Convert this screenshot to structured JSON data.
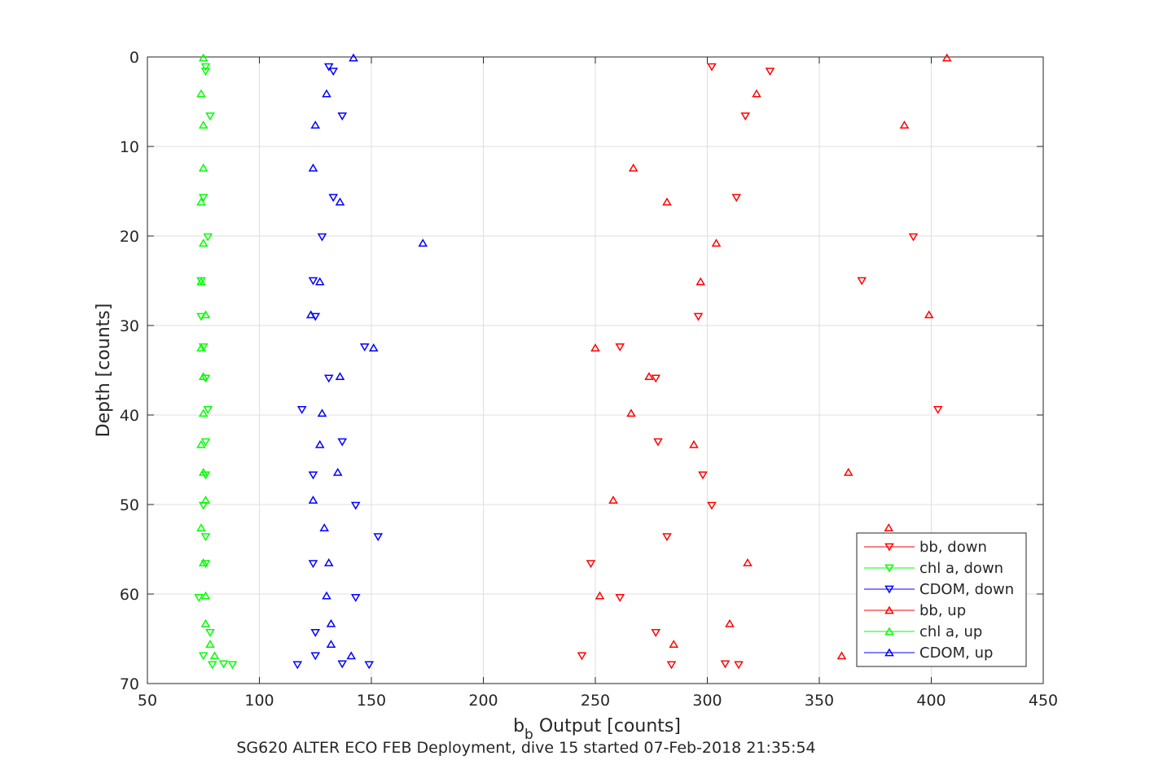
{
  "chart_data": {
    "type": "scatter",
    "xlabel": "b",
    "xlabel_subscript": "b",
    "xlabel_suffix": " Output [counts]",
    "ylabel": "Depth [counts]",
    "caption": "SG620 ALTER ECO FEB Deployment, dive 15 started 07-Feb-2018 21:35:54",
    "xlim": [
      50,
      450
    ],
    "ylim": [
      0,
      70
    ],
    "y_reversed": true,
    "grid": true,
    "legend_position": "bottom-right",
    "x_ticks": [
      "50",
      "100",
      "150",
      "200",
      "250",
      "300",
      "350",
      "400",
      "450"
    ],
    "y_ticks": [
      "0",
      "10",
      "20",
      "30",
      "40",
      "50",
      "60",
      "70"
    ],
    "series": [
      {
        "name": "bb, down",
        "color": "#ff0000",
        "marker": "triangle-down",
        "points": [
          [
            302,
            1.1
          ],
          [
            328,
            1.6
          ],
          [
            317,
            6.6
          ],
          [
            313,
            15.7
          ],
          [
            392,
            20.1
          ],
          [
            369,
            25.0
          ],
          [
            296,
            29.0
          ],
          [
            261,
            32.4
          ],
          [
            277,
            35.9
          ],
          [
            403,
            39.4
          ],
          [
            278,
            43.0
          ],
          [
            298,
            46.7
          ],
          [
            302,
            50.1
          ],
          [
            282,
            53.6
          ],
          [
            248,
            56.6
          ],
          [
            261,
            60.4
          ],
          [
            277,
            64.3
          ],
          [
            244,
            66.9
          ],
          [
            284,
            67.9
          ],
          [
            308,
            67.8
          ],
          [
            314,
            67.9
          ]
        ]
      },
      {
        "name": "chl a, down",
        "color": "#00ff00",
        "marker": "triangle-down",
        "points": [
          [
            76,
            1.1
          ],
          [
            76,
            1.6
          ],
          [
            78,
            6.6
          ],
          [
            75,
            15.7
          ],
          [
            77,
            20.1
          ],
          [
            74,
            25.0
          ],
          [
            74,
            29.0
          ],
          [
            75,
            32.4
          ],
          [
            76,
            35.9
          ],
          [
            77,
            39.4
          ],
          [
            76,
            43.0
          ],
          [
            76,
            46.7
          ],
          [
            75,
            50.1
          ],
          [
            76,
            53.6
          ],
          [
            76,
            56.6
          ],
          [
            73,
            60.4
          ],
          [
            78,
            64.3
          ],
          [
            75,
            66.9
          ],
          [
            79,
            67.9
          ],
          [
            84,
            67.8
          ],
          [
            88,
            67.9
          ]
        ]
      },
      {
        "name": "CDOM, down",
        "color": "#0000ff",
        "marker": "triangle-down",
        "points": [
          [
            131,
            1.1
          ],
          [
            133,
            1.6
          ],
          [
            137,
            6.6
          ],
          [
            133,
            15.7
          ],
          [
            128,
            20.1
          ],
          [
            124,
            25.0
          ],
          [
            125,
            29.0
          ],
          [
            147,
            32.4
          ],
          [
            131,
            35.9
          ],
          [
            119,
            39.4
          ],
          [
            137,
            43.0
          ],
          [
            124,
            46.7
          ],
          [
            143,
            50.1
          ],
          [
            153,
            53.6
          ],
          [
            124,
            56.6
          ],
          [
            143,
            60.4
          ],
          [
            125,
            64.3
          ],
          [
            125,
            66.9
          ],
          [
            117,
            67.9
          ],
          [
            137,
            67.8
          ],
          [
            149,
            67.9
          ]
        ]
      },
      {
        "name": "bb, up",
        "color": "#ff0000",
        "marker": "triangle-up",
        "points": [
          [
            407,
            0.1
          ],
          [
            322,
            4.1
          ],
          [
            388,
            7.6
          ],
          [
            267,
            12.4
          ],
          [
            282,
            16.2
          ],
          [
            304,
            20.8
          ],
          [
            297,
            25.1
          ],
          [
            399,
            28.8
          ],
          [
            250,
            32.5
          ],
          [
            274,
            35.7
          ],
          [
            266,
            39.8
          ],
          [
            294,
            43.3
          ],
          [
            363,
            46.4
          ],
          [
            258,
            49.5
          ],
          [
            381,
            52.6
          ],
          [
            318,
            56.5
          ],
          [
            252,
            60.2
          ],
          [
            310,
            63.3
          ],
          [
            285,
            65.6
          ],
          [
            360,
            66.9
          ]
        ]
      },
      {
        "name": "chl a, up",
        "color": "#00ff00",
        "marker": "triangle-up",
        "points": [
          [
            75,
            0.1
          ],
          [
            74,
            4.1
          ],
          [
            75,
            7.6
          ],
          [
            75,
            12.4
          ],
          [
            74,
            16.2
          ],
          [
            75,
            20.8
          ],
          [
            74,
            25.1
          ],
          [
            76,
            28.8
          ],
          [
            74,
            32.5
          ],
          [
            75,
            35.7
          ],
          [
            75,
            39.8
          ],
          [
            74,
            43.3
          ],
          [
            75,
            46.4
          ],
          [
            76,
            49.5
          ],
          [
            74,
            52.6
          ],
          [
            75,
            56.5
          ],
          [
            76,
            60.2
          ],
          [
            76,
            63.3
          ],
          [
            78,
            65.6
          ],
          [
            80,
            66.9
          ]
        ]
      },
      {
        "name": "CDOM, up",
        "color": "#0000ff",
        "marker": "triangle-up",
        "points": [
          [
            142,
            0.1
          ],
          [
            130,
            4.1
          ],
          [
            125,
            7.6
          ],
          [
            124,
            12.4
          ],
          [
            136,
            16.2
          ],
          [
            173,
            20.8
          ],
          [
            127,
            25.1
          ],
          [
            123,
            28.8
          ],
          [
            151,
            32.5
          ],
          [
            136,
            35.7
          ],
          [
            128,
            39.8
          ],
          [
            127,
            43.3
          ],
          [
            135,
            46.4
          ],
          [
            124,
            49.5
          ],
          [
            129,
            52.6
          ],
          [
            131,
            56.5
          ],
          [
            130,
            60.2
          ],
          [
            132,
            63.3
          ],
          [
            132,
            65.6
          ],
          [
            141,
            66.9
          ]
        ]
      }
    ]
  }
}
